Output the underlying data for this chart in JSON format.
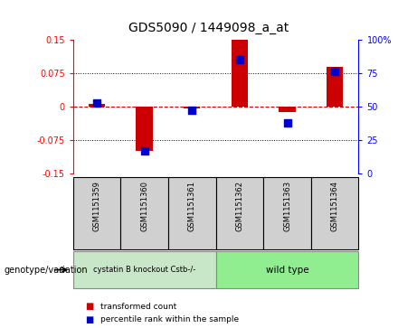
{
  "title": "GDS5090 / 1449098_a_at",
  "samples": [
    "GSM1151359",
    "GSM1151360",
    "GSM1151361",
    "GSM1151362",
    "GSM1151363",
    "GSM1151364"
  ],
  "transformed_counts": [
    0.005,
    -0.098,
    -0.005,
    0.152,
    -0.012,
    0.088
  ],
  "percentile_ranks": [
    53,
    17,
    47,
    85,
    38,
    76
  ],
  "ylim_left": [
    -0.15,
    0.15
  ],
  "ylim_right": [
    0,
    100
  ],
  "yticks_left": [
    -0.15,
    -0.075,
    0,
    0.075,
    0.15
  ],
  "yticks_right": [
    0,
    25,
    50,
    75,
    100
  ],
  "ytick_labels_left": [
    "-0.15",
    "-0.075",
    "0",
    "0.075",
    "0.15"
  ],
  "ytick_labels_right": [
    "0",
    "25",
    "50",
    "75",
    "100%"
  ],
  "bar_color": "#cc0000",
  "dot_color": "#0000cc",
  "zero_line_color": "#cc0000",
  "legend_label_red": "transformed count",
  "legend_label_blue": "percentile rank within the sample",
  "genotype_label": "genotype/variation",
  "group1_label": "cystatin B knockout Cstb-/-",
  "group2_label": "wild type",
  "group1_color": "#c8e6c8",
  "group2_color": "#90EE90",
  "sample_box_color": "#d0d0d0"
}
